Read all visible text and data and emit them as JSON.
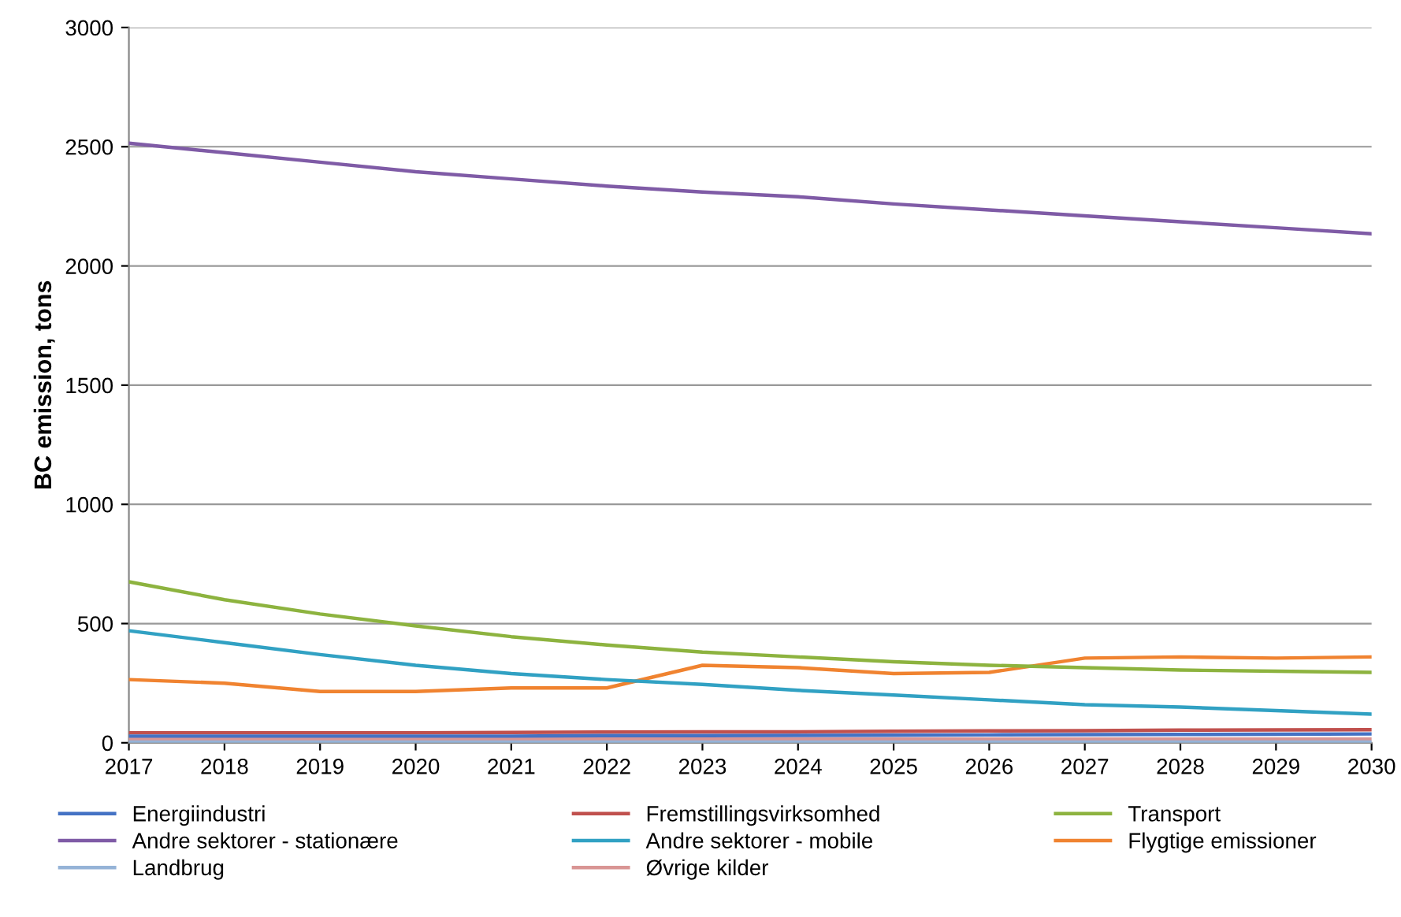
{
  "chart_data": {
    "type": "line",
    "ylabel": "BC emission, tons",
    "x": [
      2017,
      2018,
      2019,
      2020,
      2021,
      2022,
      2023,
      2024,
      2025,
      2026,
      2027,
      2028,
      2029,
      2030
    ],
    "xlim": [
      2017,
      2030
    ],
    "xticks": [
      2017,
      2018,
      2019,
      2020,
      2021,
      2022,
      2023,
      2024,
      2025,
      2026,
      2027,
      2028,
      2029,
      2030
    ],
    "ylim": [
      0,
      3000
    ],
    "yticks": [
      0,
      500,
      1000,
      1500,
      2000,
      2500,
      3000
    ],
    "grid": "y",
    "legend": "bottom",
    "marker": "none",
    "line_style": "solid",
    "series": [
      {
        "name": "Energiindustri",
        "color": "#4472c4",
        "values": [
          28,
          28,
          28,
          28,
          28,
          30,
          30,
          31,
          32,
          33,
          34,
          35,
          36,
          37
        ]
      },
      {
        "name": "Fremstillingsvirksomhed",
        "color": "#c0504d",
        "values": [
          42,
          42,
          42,
          42,
          43,
          45,
          46,
          46,
          48,
          50,
          51,
          53,
          54,
          55
        ]
      },
      {
        "name": "Transport",
        "color": "#8db33f",
        "values": [
          675,
          600,
          540,
          490,
          445,
          410,
          380,
          360,
          340,
          325,
          315,
          305,
          300,
          295
        ]
      },
      {
        "name": "Andre sektorer - stationære",
        "color": "#7f5ba6",
        "values": [
          2515,
          2475,
          2435,
          2395,
          2365,
          2335,
          2310,
          2290,
          2260,
          2235,
          2210,
          2185,
          2160,
          2135
        ]
      },
      {
        "name": "Andre sektorer - mobile",
        "color": "#31a1c3",
        "values": [
          470,
          420,
          370,
          325,
          290,
          265,
          245,
          220,
          200,
          180,
          160,
          150,
          135,
          120
        ]
      },
      {
        "name": "Flygtige emissioner",
        "color": "#f08330",
        "values": [
          265,
          250,
          215,
          215,
          230,
          230,
          325,
          315,
          290,
          295,
          355,
          360,
          355,
          360
        ]
      },
      {
        "name": "Landbrug",
        "color": "#95b3d7",
        "values": [
          3,
          3,
          3,
          3,
          3,
          3,
          3,
          3,
          3,
          3,
          3,
          3,
          3,
          3
        ]
      },
      {
        "name": "Øvrige kilder",
        "color": "#d99594",
        "values": [
          15,
          15,
          15,
          15,
          15,
          15,
          15,
          15,
          15,
          15,
          15,
          15,
          15,
          15
        ]
      }
    ]
  }
}
